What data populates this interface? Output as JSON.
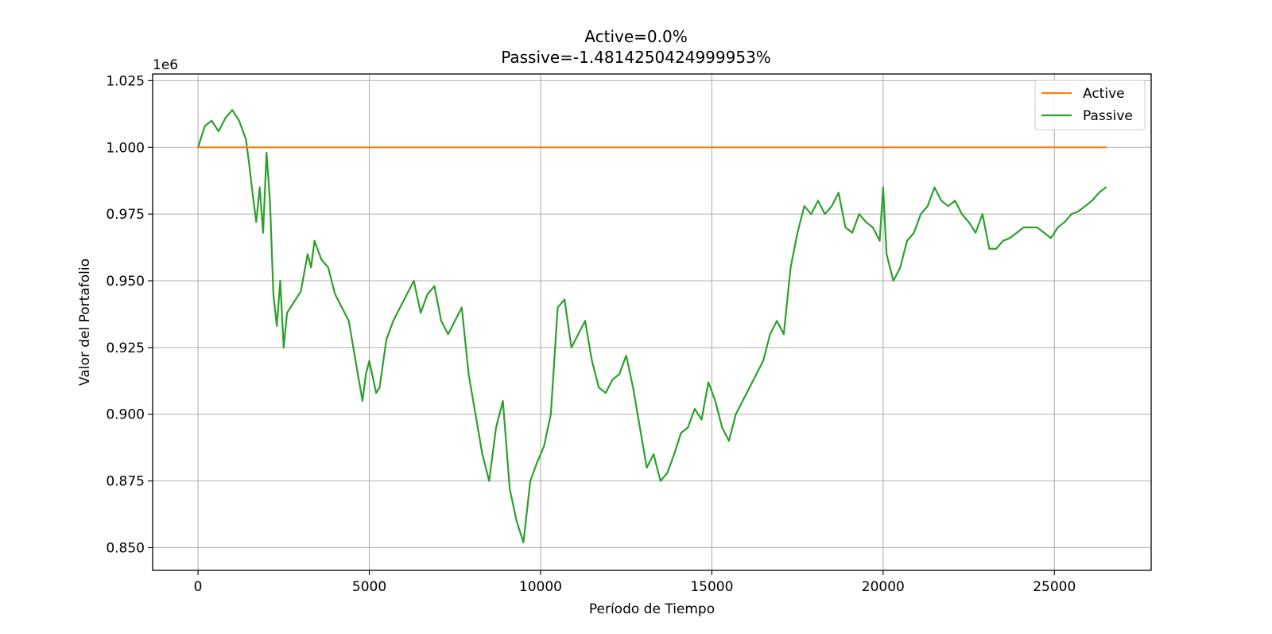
{
  "chart_data": {
    "type": "line",
    "title_lines": [
      "Active=0.0%",
      "Passive=-1.4814250424999953%"
    ],
    "xlabel": "Período de Tiempo",
    "ylabel": "Valor del Portafolio",
    "y_offset_label": "1e6",
    "xlim": [
      -1325,
      27825
    ],
    "ylim": [
      0.8415,
      1.0275
    ],
    "xticks": [
      0,
      5000,
      10000,
      15000,
      20000,
      25000
    ],
    "xtick_labels": [
      "0",
      "5000",
      "10000",
      "15000",
      "20000",
      "25000"
    ],
    "yticks": [
      0.85,
      0.875,
      0.9,
      0.925,
      0.95,
      0.975,
      1.0,
      1.025
    ],
    "ytick_labels": [
      "0.850",
      "0.875",
      "0.900",
      "0.925",
      "0.950",
      "0.975",
      "1.000",
      "1.025"
    ],
    "grid": true,
    "legend_position": "top-right",
    "series": [
      {
        "name": "Active",
        "color": "#ff7f0e",
        "x": [
          0,
          26500
        ],
        "y": [
          1.0,
          1.0
        ]
      },
      {
        "name": "Passive",
        "color": "#2ca02c",
        "x": [
          0,
          200,
          400,
          600,
          800,
          1000,
          1200,
          1400,
          1500,
          1600,
          1700,
          1800,
          1900,
          2000,
          2100,
          2200,
          2300,
          2400,
          2500,
          2600,
          2800,
          3000,
          3200,
          3300,
          3400,
          3600,
          3800,
          4000,
          4200,
          4400,
          4600,
          4800,
          4900,
          5000,
          5200,
          5300,
          5500,
          5700,
          5900,
          6100,
          6300,
          6500,
          6700,
          6900,
          7100,
          7300,
          7500,
          7700,
          7900,
          8100,
          8300,
          8500,
          8700,
          8900,
          9100,
          9300,
          9500,
          9700,
          9900,
          10100,
          10300,
          10500,
          10700,
          10900,
          11100,
          11300,
          11500,
          11700,
          11900,
          12100,
          12300,
          12500,
          12700,
          12900,
          13100,
          13300,
          13500,
          13700,
          13900,
          14100,
          14300,
          14500,
          14700,
          14900,
          15100,
          15300,
          15500,
          15700,
          15900,
          16100,
          16300,
          16500,
          16700,
          16900,
          17100,
          17300,
          17500,
          17700,
          17900,
          18100,
          18300,
          18500,
          18700,
          18900,
          19100,
          19300,
          19500,
          19700,
          19900,
          20000,
          20100,
          20300,
          20500,
          20700,
          20900,
          21100,
          21300,
          21500,
          21700,
          21900,
          22100,
          22300,
          22500,
          22700,
          22900,
          23100,
          23300,
          23500,
          23700,
          23900,
          24100,
          24300,
          24500,
          24700,
          24900,
          25100,
          25300,
          25500,
          25700,
          25900,
          26100,
          26300,
          26500
        ],
        "y": [
          1.0,
          1.008,
          1.01,
          1.006,
          1.011,
          1.014,
          1.01,
          1.003,
          0.993,
          0.982,
          0.972,
          0.985,
          0.968,
          0.998,
          0.98,
          0.945,
          0.933,
          0.95,
          0.925,
          0.938,
          0.942,
          0.946,
          0.96,
          0.955,
          0.965,
          0.958,
          0.955,
          0.945,
          0.94,
          0.935,
          0.92,
          0.905,
          0.915,
          0.92,
          0.908,
          0.91,
          0.928,
          0.935,
          0.94,
          0.945,
          0.95,
          0.938,
          0.945,
          0.948,
          0.935,
          0.93,
          0.935,
          0.94,
          0.915,
          0.9,
          0.885,
          0.875,
          0.895,
          0.905,
          0.872,
          0.86,
          0.852,
          0.875,
          0.882,
          0.888,
          0.9,
          0.94,
          0.943,
          0.925,
          0.93,
          0.935,
          0.92,
          0.91,
          0.908,
          0.913,
          0.915,
          0.922,
          0.91,
          0.895,
          0.88,
          0.885,
          0.875,
          0.878,
          0.885,
          0.893,
          0.895,
          0.902,
          0.898,
          0.912,
          0.905,
          0.895,
          0.89,
          0.9,
          0.905,
          0.91,
          0.915,
          0.92,
          0.93,
          0.935,
          0.93,
          0.955,
          0.968,
          0.978,
          0.975,
          0.98,
          0.975,
          0.978,
          0.983,
          0.97,
          0.968,
          0.975,
          0.972,
          0.97,
          0.965,
          0.985,
          0.96,
          0.95,
          0.955,
          0.965,
          0.968,
          0.975,
          0.978,
          0.985,
          0.98,
          0.978,
          0.98,
          0.975,
          0.972,
          0.968,
          0.975,
          0.962,
          0.962,
          0.965,
          0.966,
          0.968,
          0.97,
          0.97,
          0.97,
          0.968,
          0.966,
          0.97,
          0.972,
          0.975,
          0.976,
          0.978,
          0.98,
          0.983,
          0.985
        ]
      }
    ]
  }
}
